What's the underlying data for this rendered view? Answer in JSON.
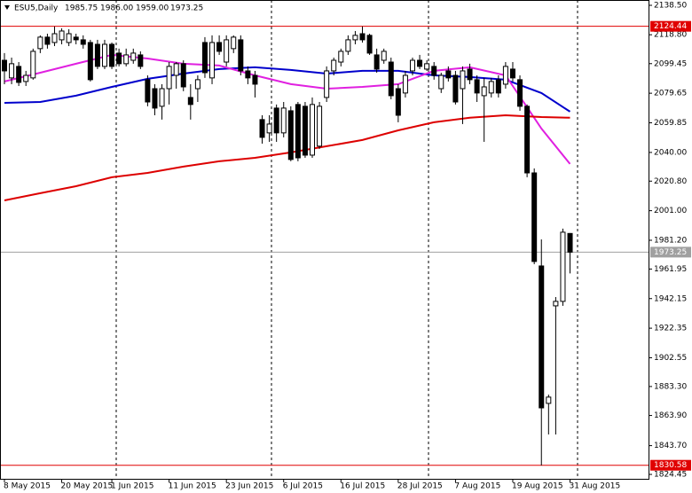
{
  "chart_data": {
    "type": "candlestick",
    "symbol": "ESU5,Daily",
    "header_ohlc": [
      1985.75,
      {
        "value": 1986,
        "label": "1986.00"
      },
      {
        "value": 1959,
        "label": "1959.00"
      },
      1973.25
    ],
    "categories": [
      "8 May 2015",
      null,
      null,
      null,
      null,
      null,
      null,
      null,
      "20 May 2015",
      null,
      null,
      null,
      null,
      null,
      null,
      "1 Jun 2015",
      null,
      null,
      null,
      null,
      null,
      null,
      null,
      "11 Jun 2015",
      null,
      null,
      null,
      null,
      null,
      null,
      null,
      "23 Jun 2015",
      null,
      null,
      null,
      null,
      null,
      null,
      null,
      "6 Jul 2015",
      null,
      null,
      null,
      null,
      null,
      null,
      null,
      "16 Jul 2015",
      null,
      null,
      null,
      null,
      null,
      null,
      null,
      "28 Jul 2015",
      null,
      null,
      null,
      null,
      null,
      null,
      null,
      "7 Aug 2015",
      null,
      null,
      null,
      null,
      null,
      null,
      null,
      "19 Aug 2015",
      null,
      null,
      null,
      null,
      null,
      null,
      null,
      "31 Aug 2015"
    ],
    "open": [
      2101.7,
      2089.9,
      2097.6,
      2087.5,
      2089.9,
      2109.5,
      2117.2,
      2113.6,
      2115.4,
      2113.6,
      2117.2,
      2115.4,
      2113.6,
      2112.4,
      2097.6,
      2112.4,
      2106.5,
      2099.4,
      2101.7,
      2105.3,
      2088.7,
      2082.7,
      2070.9,
      2082.7,
      2091.6,
      2099.4,
      2076.8,
      2082.7,
      2113.6,
      2089.9,
      2113.6,
      2100.5,
      2109.5,
      2115.4,
      2094.6,
      2091.6,
      2062.0,
      2053.1,
      2069.7,
      2053.1,
      2067.9,
      2072.1,
      2070.9,
      2038.2,
      2044.2,
      2076.8,
      2094.6,
      2100.5,
      2107.7,
      2115.4,
      2119.5,
      2118.4,
      2105.3,
      2101.7,
      2100.5,
      2082.7,
      2079.8,
      2094.6,
      2101.7,
      2095.8,
      2097.6,
      2082.7,
      2094.6,
      2091.6,
      2082.7,
      2095.8,
      2088.7,
      2078.0,
      2079.8,
      2088.7,
      2085.7,
      2095.8,
      2088.7,
      2070.9,
      2026.3,
      1964.0,
      1872.0,
      1937.3,
      1940.3,
      1985.75
    ],
    "high": [
      2106.5,
      2103.5,
      2100.5,
      2094.6,
      2109.5,
      2118.4,
      2119.5,
      2124.3,
      2123.1,
      2122.5,
      2119.5,
      2118.4,
      2115.4,
      2115.4,
      2115.4,
      2113.6,
      2109.5,
      2109.5,
      2109.5,
      2107.7,
      2091.6,
      2085.7,
      2085.7,
      2100.5,
      2100.5,
      2101.7,
      2085.7,
      2091.6,
      2117.2,
      2118.4,
      2118.4,
      2118.4,
      2118.4,
      2118.4,
      2097.6,
      2094.6,
      2064.9,
      2064.9,
      2072.1,
      2073.8,
      2070.9,
      2073.8,
      2073.8,
      2076.8,
      2073.8,
      2097.6,
      2103.5,
      2109.5,
      2118.4,
      2121.3,
      2124.3,
      2119.5,
      2109.5,
      2109.5,
      2103.5,
      2085.7,
      2094.6,
      2103.5,
      2105.3,
      2101.7,
      2100.5,
      2093.4,
      2097.6,
      2094.6,
      2097.6,
      2099.4,
      2091.6,
      2089.9,
      2089.9,
      2091.6,
      2100.5,
      2100.5,
      2091.6,
      2072.1,
      2029.3,
      1981.8,
      1877.9,
      1943.2,
      1989.0,
      1986
    ],
    "low": [
      2085.7,
      2085.7,
      2084.5,
      2084.5,
      2088.7,
      2106.5,
      2109.5,
      2111.2,
      2112.4,
      2111.2,
      2112.4,
      2109.5,
      2087.5,
      2095.8,
      2095.8,
      2095.8,
      2097.6,
      2097.6,
      2099.4,
      2095.8,
      2070.9,
      2064.9,
      2062.0,
      2072.1,
      2082.7,
      2081.0,
      2062.0,
      2073.8,
      2089.9,
      2085.7,
      2105.3,
      2097.6,
      2106.5,
      2091.6,
      2085.7,
      2076.8,
      2045.9,
      2047.1,
      2047.1,
      2050.1,
      2034.1,
      2034.1,
      2036.4,
      2036.4,
      2042.4,
      2073.8,
      2091.6,
      2097.6,
      2105.3,
      2112.4,
      2113.6,
      2105.3,
      2093.4,
      2099.4,
      2075.6,
      2060.2,
      2076.8,
      2091.6,
      2095.8,
      2094.6,
      2088.7,
      2079.8,
      2087.5,
      2072.1,
      2059.0,
      2085.7,
      2073.8,
      2047.1,
      2076.8,
      2076.8,
      2082.7,
      2087.5,
      2067.9,
      2023.4,
      1965.2,
      1830.5,
      1851.2,
      1851.2,
      1937.3,
      1959
    ],
    "close": [
      2094.6,
      2099.4,
      2086.9,
      2091.6,
      2107.7,
      2117.2,
      2112.4,
      2119.5,
      2121.3,
      2119.5,
      2115.4,
      2112.4,
      2088.7,
      2097.6,
      2112.4,
      2097.6,
      2099.4,
      2105.3,
      2106.5,
      2097.6,
      2073.8,
      2069.7,
      2082.7,
      2097.6,
      2099.4,
      2083.9,
      2072.1,
      2088.7,
      2093.4,
      2113.6,
      2107.7,
      2115.4,
      2117.2,
      2094.6,
      2089.9,
      2085.7,
      2050.1,
      2059.0,
      2053.1,
      2069.7,
      2035.3,
      2036.4,
      2038.2,
      2072.1,
      2070.9,
      2094.6,
      2101.7,
      2107.7,
      2115.4,
      2118.4,
      2115.4,
      2106.5,
      2095.8,
      2107.7,
      2078.0,
      2064.9,
      2091.6,
      2101.7,
      2097.6,
      2099.4,
      2091.6,
      2091.6,
      2089.9,
      2073.8,
      2094.6,
      2088.7,
      2079.8,
      2083.9,
      2087.5,
      2079.8,
      2097.6,
      2089.9,
      2070.9,
      2026.3,
      1967.0,
      1869.0,
      1876.2,
      1940.3,
      1986.6,
      1973.25
    ],
    "up_color": "#ffffff",
    "down_color": "#000000",
    "overlays": [
      {
        "color": "#0000cc",
        "x": [
          0,
          5,
          10,
          15,
          20,
          25,
          30,
          35,
          40,
          45,
          50,
          55,
          60,
          65,
          70,
          75,
          79
        ],
        "values": [
          2073.2,
          2073.8,
          2078.0,
          2083.9,
          2089.3,
          2092.8,
          2095.8,
          2097.0,
          2095.2,
          2092.8,
          2094.6,
          2094.6,
          2091.6,
          2090.5,
          2088.7,
          2079.8,
          2067.3
        ]
      },
      {
        "color": "#e020e0",
        "x": [
          0,
          5,
          10,
          15,
          20,
          25,
          30,
          35,
          40,
          45,
          50,
          55,
          60,
          65,
          70,
          75,
          79
        ],
        "values": [
          2087.5,
          2093.4,
          2099.4,
          2105.3,
          2102.9,
          2099.4,
          2098.2,
          2091.6,
          2085.7,
          2082.7,
          2083.9,
          2085.7,
          2094.6,
          2097.0,
          2091.6,
          2056.0,
          2032.3
        ]
      },
      {
        "color": "#dd0000",
        "x": [
          0,
          5,
          10,
          15,
          20,
          25,
          30,
          35,
          40,
          45,
          50,
          55,
          60,
          65,
          70,
          75,
          79
        ],
        "values": [
          2007.9,
          2012.7,
          2017.4,
          2023.4,
          2026.3,
          2030.5,
          2034.1,
          2036.4,
          2040.0,
          2044.2,
          2048.3,
          2054.8,
          2060.2,
          2063.2,
          2064.9,
          2063.7,
          2063.2
        ]
      }
    ],
    "levels": [
      {
        "value": 2124.44,
        "color": "#e00000"
      },
      {
        "value": 1973.25,
        "color": "#a0a0a0"
      },
      {
        "value": 1830.58,
        "color": "#e00000"
      }
    ],
    "ylim": [
      1821.5,
      2142.06
    ],
    "yticks": [
      {
        "value": 2138.5,
        "label": "2138.50"
      },
      {
        "value": 2118.8,
        "label": "2118.80"
      },
      2099.45,
      2079.65,
      2059.85,
      {
        "value": 2040,
        "label": "2040.00"
      },
      {
        "value": 2020.8,
        "label": "2020.80"
      },
      {
        "value": 2001,
        "label": "2001.00"
      },
      {
        "value": 1981.2,
        "label": "1981.20"
      },
      1961.95,
      1942.15,
      1922.35,
      1902.55,
      {
        "value": 1883.3,
        "label": "1883.30"
      },
      {
        "value": 1863.9,
        "label": "1863.90"
      },
      {
        "value": 1843.7,
        "label": "1843.70"
      },
      1824.45
    ]
  }
}
